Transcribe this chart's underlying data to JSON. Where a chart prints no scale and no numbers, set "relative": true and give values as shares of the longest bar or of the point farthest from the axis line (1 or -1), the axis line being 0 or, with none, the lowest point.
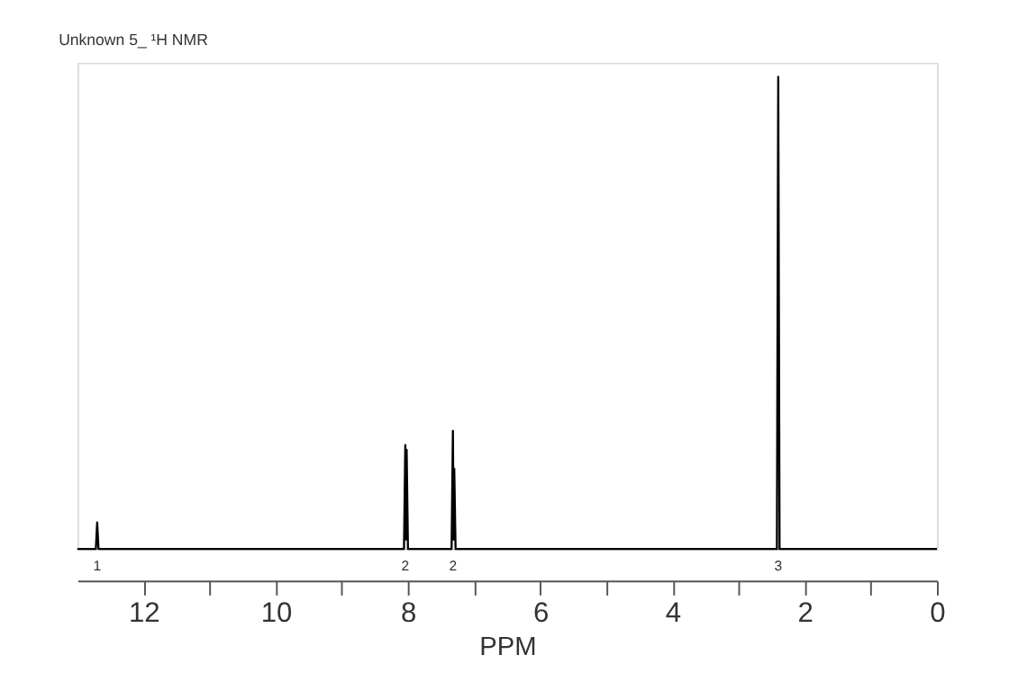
{
  "chart_data": {
    "type": "line",
    "title": "Unknown 5_   ¹H NMR",
    "xlabel": "PPM",
    "relative": true,
    "x": [
      13,
      12.72,
      12.7,
      12.68,
      8.06,
      8.04,
      8.03,
      8.02,
      8.0,
      7.34,
      7.32,
      7.31,
      7.3,
      7.28,
      2.42,
      2.4,
      2.38,
      0
    ],
    "series": [
      {
        "color": "#000000",
        "values": [
          0,
          0,
          0.056,
          0,
          0,
          0.22,
          0.02,
          0.21,
          0,
          0,
          0.25,
          0.02,
          0.17,
          0,
          0,
          1,
          0,
          0
        ]
      }
    ],
    "xlim": [
      13,
      0
    ],
    "xticks": [
      12,
      10,
      8,
      6,
      4,
      2,
      0
    ],
    "annotations": [
      "1",
      "2",
      "2",
      "3"
    ],
    "grid": false,
    "marker": "none",
    "line_style": "solid"
  }
}
